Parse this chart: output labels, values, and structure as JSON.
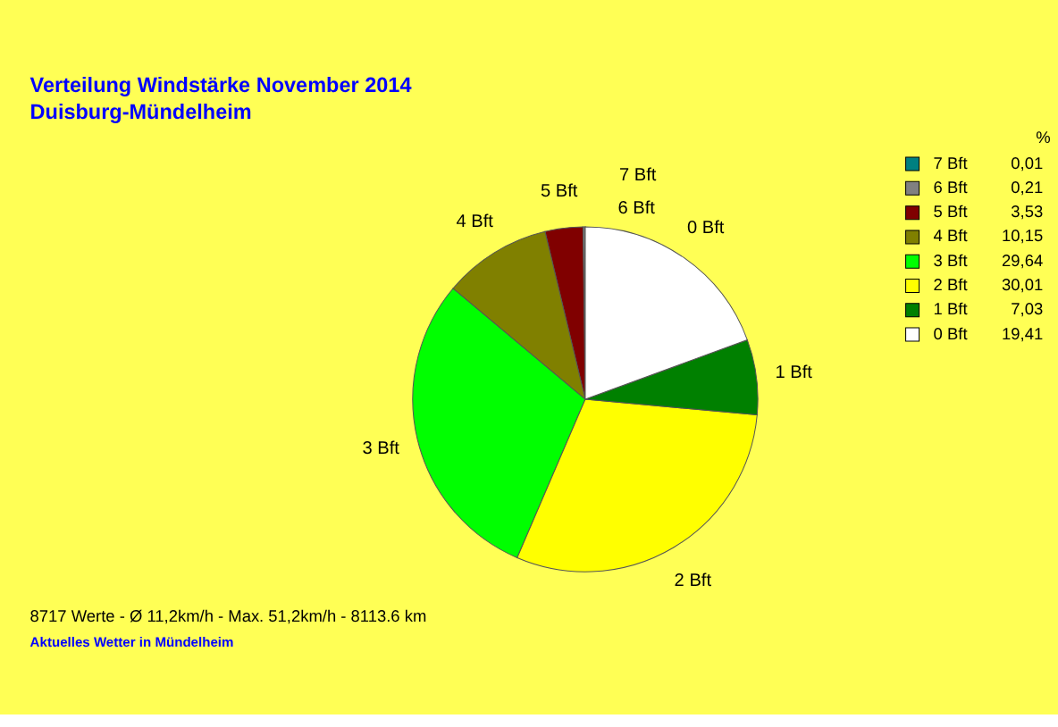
{
  "chart_data": {
    "type": "pie",
    "title": "Verteilung Windstärke  November 2014",
    "subtitle": "Duisburg-Mündelheim",
    "legend_title": "%",
    "categories": [
      "7 Bft",
      "6 Bft",
      "5 Bft",
      "4 Bft",
      "3 Bft",
      "2 Bft",
      "1 Bft",
      "0 Bft"
    ],
    "values": [
      0.01,
      0.21,
      3.53,
      10.15,
      29.64,
      30.01,
      7.03,
      19.41
    ],
    "value_labels": [
      "0,01",
      "0,21",
      "3,53",
      "10,15",
      "29,64",
      "30,01",
      "7,03",
      "19,41"
    ],
    "colors": [
      "#008080",
      "#808080",
      "#800000",
      "#808000",
      "#00ff00",
      "#ffff00",
      "#008000",
      "#ffffff"
    ],
    "legend": "right",
    "annotations": [
      "8717 Werte   -   Ø 11,2km/h  -  Max. 51,2km/h   -   8113.6 km",
      "Aktuelles Wetter in Mündelheim"
    ]
  }
}
